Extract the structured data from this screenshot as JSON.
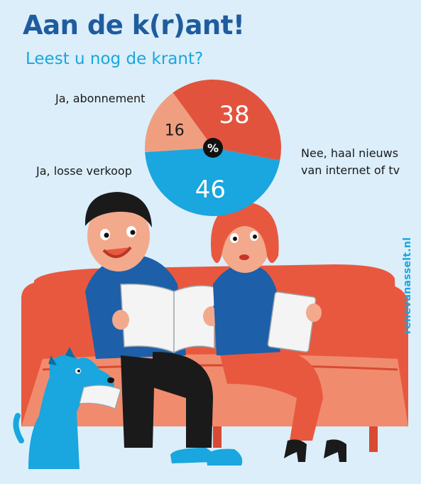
{
  "title": "Aan de k(r)ant!",
  "subtitle": "Leest u nog de krant?",
  "credit": "renevanasselt.nl",
  "colors": {
    "background": "#dbeefa",
    "title": "#1f5c9e",
    "subtitle": "#1aa6de",
    "abonnement": "#e2533d",
    "losse_verkoop": "#ef9f80",
    "nee": "#1aa6de"
  },
  "chart_data": {
    "type": "pie",
    "unit": "%",
    "center_label": "%",
    "slices": [
      {
        "label": "Ja, abonnement",
        "value": 38,
        "color": "#e2533d"
      },
      {
        "label": "Nee, haal nieuws van internet of tv",
        "value": 46,
        "color": "#1aa6de"
      },
      {
        "label": "Ja, losse verkoop",
        "value": 16,
        "color": "#ef9f80"
      }
    ]
  },
  "labels": {
    "abonnement": "Ja, abonnement",
    "losse_verkoop": "Ja, losse verkoop",
    "nee_line1": "Nee, haal nieuws",
    "nee_line2": "van internet of tv"
  }
}
